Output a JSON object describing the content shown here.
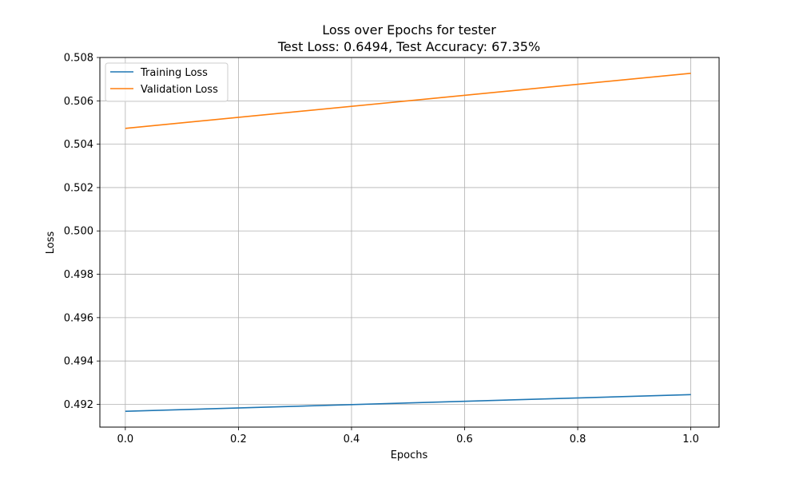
{
  "chart_data": {
    "type": "line",
    "title": "Loss over Epochs for tester",
    "subtitle": "Test Loss: 0.6494, Test Accuracy: 67.35%",
    "xlabel": "Epochs",
    "ylabel": "Loss",
    "xlim": [
      -0.045,
      1.05
    ],
    "ylim": [
      0.49095,
      0.508
    ],
    "xticks": [
      0.0,
      0.2,
      0.4,
      0.6,
      0.8,
      1.0
    ],
    "xtick_labels": [
      "0.0",
      "0.2",
      "0.4",
      "0.6",
      "0.8",
      "1.0"
    ],
    "yticks": [
      0.492,
      0.494,
      0.496,
      0.498,
      0.5,
      0.502,
      0.504,
      0.506,
      0.508
    ],
    "ytick_labels": [
      "0.492",
      "0.494",
      "0.496",
      "0.498",
      "0.500",
      "0.502",
      "0.504",
      "0.506",
      "0.508"
    ],
    "grid": true,
    "legend_position": "top-left",
    "x": [
      0,
      1
    ],
    "series": [
      {
        "name": "Training Loss",
        "color": "#1f77b4",
        "values": [
          0.49168,
          0.49245
        ]
      },
      {
        "name": "Validation Loss",
        "color": "#ff7f0e",
        "values": [
          0.50473,
          0.50727
        ]
      }
    ]
  }
}
